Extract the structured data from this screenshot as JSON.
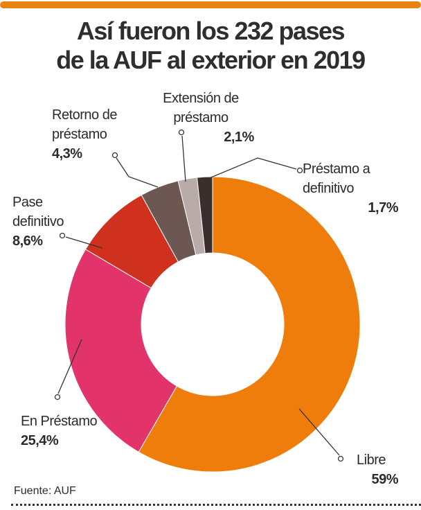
{
  "title": [
    "Así fueron los 232 pases",
    "de la AUF al exterior en 2019"
  ],
  "source": "Fuente:  AUF",
  "chart_data": {
    "type": "pie",
    "donut": true,
    "title": "Así fueron los 232 pases de la AUF al exterior en 2019",
    "start": "top, clockwise",
    "slices": [
      {
        "label": [
          "Libre"
        ],
        "value": 59,
        "display": "59%",
        "color": "#ee7d0c"
      },
      {
        "label": [
          "En Préstamo"
        ],
        "value": 25.4,
        "display": "25,4%",
        "color": "#e2336b"
      },
      {
        "label": [
          "Pase",
          "definitivo"
        ],
        "value": 8.6,
        "display": "8,6%",
        "color": "#d0311f"
      },
      {
        "label": [
          "Retorno de",
          "préstamo"
        ],
        "value": 4.3,
        "display": "4,3%",
        "color": "#6d5753"
      },
      {
        "label": [
          "Extensión de",
          "préstamo"
        ],
        "value": 2.1,
        "display": "2,1%",
        "color": "#b9aba7"
      },
      {
        "label": [
          "Préstamo a",
          "definitivo"
        ],
        "value": 1.7,
        "display": "1,7%",
        "color": "#3a2f2d"
      }
    ]
  }
}
